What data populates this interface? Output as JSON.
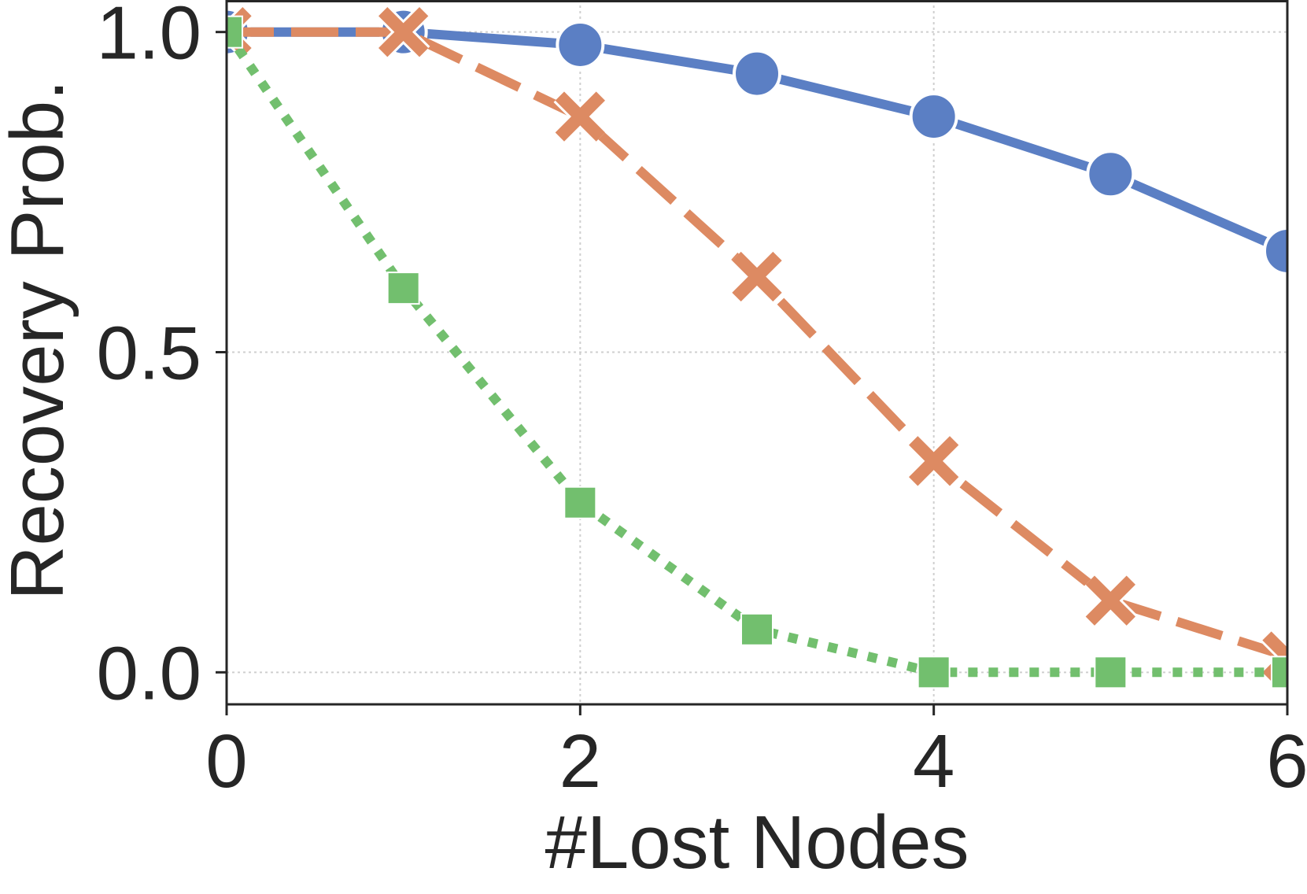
{
  "chart_data": {
    "type": "line",
    "title": "",
    "xlabel": "#Lost Nodes",
    "ylabel": "Recovery Prob.",
    "xlim": [
      0,
      6
    ],
    "ylim": [
      -0.05,
      1.05
    ],
    "xticks": [
      0,
      2,
      4,
      6
    ],
    "yticks": [
      0.0,
      0.5,
      1.0
    ],
    "xtick_labels": [
      "0",
      "2",
      "4",
      "6"
    ],
    "ytick_labels": [
      "0.0",
      "0.5",
      "1.0"
    ],
    "grid": true,
    "legend": "none",
    "x": [
      0,
      1,
      2,
      3,
      4,
      5,
      6
    ],
    "series": [
      {
        "color": "#5b7fc4",
        "line_style": "solid",
        "marker": "circle",
        "values": [
          1.0,
          1.0,
          0.98,
          0.935,
          0.868,
          0.778,
          0.658
        ]
      },
      {
        "color": "#dd8a62",
        "line_style": "dashed",
        "marker": "x",
        "values": [
          1.0,
          1.0,
          0.868,
          0.618,
          0.33,
          0.112,
          0.025
        ]
      },
      {
        "color": "#72bf6e",
        "line_style": "dotted",
        "marker": "square",
        "values": [
          1.0,
          0.6,
          0.265,
          0.067,
          0.0,
          0.0,
          0.0
        ]
      }
    ]
  }
}
